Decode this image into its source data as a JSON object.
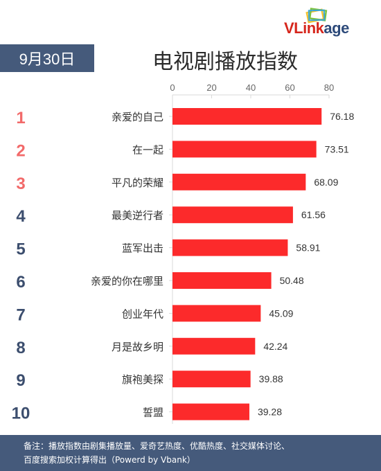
{
  "brand": {
    "part1": "VLink",
    "part2": "age"
  },
  "date_label": "9月30日",
  "title": "电视剧播放指数",
  "footer": {
    "line1": "备注：播放指数由剧集播放量、爱奇艺热度、优酷热度、社交媒体讨论、",
    "line2": "百度搜索加权计算得出（Powerd by Vbank）"
  },
  "colors": {
    "bar": "#fc2a2b",
    "rank_top": "#f26a6a",
    "rank_other": "#3c4e6e",
    "accent": "#455a7b"
  },
  "chart_data": {
    "type": "bar",
    "orientation": "horizontal",
    "ranks": [
      "1",
      "2",
      "3",
      "4",
      "5",
      "6",
      "7",
      "8",
      "9",
      "10"
    ],
    "categories": [
      "亲爱的自己",
      "在一起",
      "平凡的荣耀",
      "最美逆行者",
      "蓝军出击",
      "亲爱的你在哪里",
      "创业年代",
      "月是故乡明",
      "旗袍美探",
      "誓盟"
    ],
    "values": [
      76.18,
      73.51,
      68.09,
      61.56,
      58.91,
      50.48,
      45.09,
      42.24,
      39.88,
      39.28
    ],
    "value_labels": [
      "76.18",
      "73.51",
      "68.09",
      "61.56",
      "58.91",
      "50.48",
      "45.09",
      "42.24",
      "39.88",
      "39.28"
    ],
    "xticks": [
      "0",
      "20",
      "40",
      "60",
      "80"
    ],
    "xlim": [
      0,
      80
    ],
    "grid": false
  }
}
